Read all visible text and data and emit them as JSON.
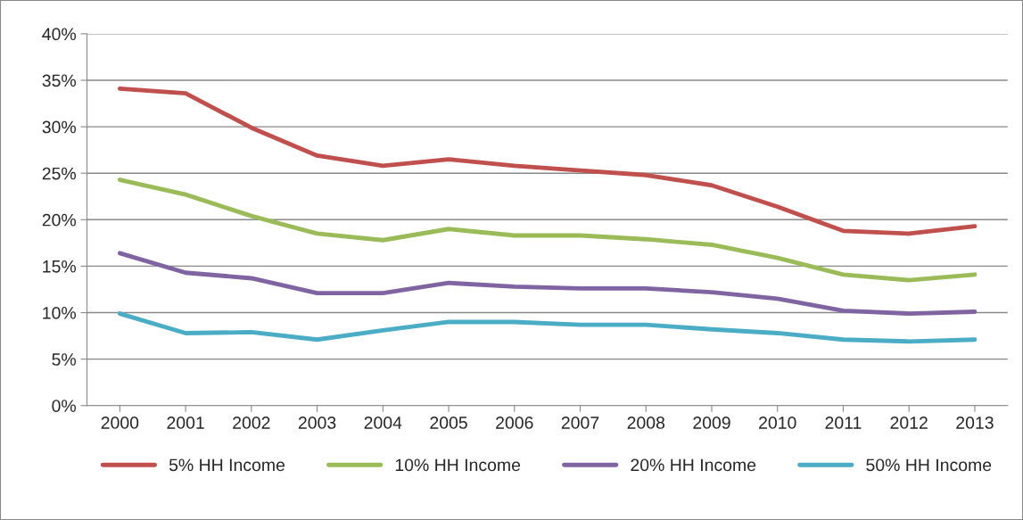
{
  "chart_data": {
    "type": "line",
    "categories": [
      "2000",
      "2001",
      "2002",
      "2003",
      "2004",
      "2005",
      "2006",
      "2007",
      "2008",
      "2009",
      "2010",
      "2011",
      "2012",
      "2013"
    ],
    "series": [
      {
        "name": "5% HH Income",
        "color": "#c0504d",
        "values": [
          34.1,
          33.6,
          29.9,
          26.9,
          25.8,
          26.5,
          25.8,
          25.3,
          24.8,
          23.7,
          21.4,
          18.8,
          18.5,
          19.3
        ]
      },
      {
        "name": "10% HH Income",
        "color": "#9bbb59",
        "values": [
          24.3,
          22.7,
          20.4,
          18.5,
          17.8,
          19.0,
          18.3,
          18.3,
          17.9,
          17.3,
          15.9,
          14.1,
          13.5,
          14.1
        ]
      },
      {
        "name": "20% HH Income",
        "color": "#8064a2",
        "values": [
          16.4,
          14.3,
          13.7,
          12.1,
          12.1,
          13.2,
          12.8,
          12.6,
          12.6,
          12.2,
          11.5,
          10.2,
          9.9,
          10.1
        ]
      },
      {
        "name": "50% HH Income",
        "color": "#4bacc6",
        "values": [
          9.9,
          7.8,
          7.9,
          7.1,
          8.1,
          9.0,
          9.0,
          8.7,
          8.7,
          8.2,
          7.8,
          7.1,
          6.9,
          7.1
        ]
      }
    ],
    "ylim": [
      0,
      40
    ],
    "yticks": [
      {
        "value": 0,
        "label": "0%"
      },
      {
        "value": 5,
        "label": "5%"
      },
      {
        "value": 10,
        "label": "10%"
      },
      {
        "value": 15,
        "label": "15%"
      },
      {
        "value": 20,
        "label": "20%"
      },
      {
        "value": 25,
        "label": "25%"
      },
      {
        "value": 30,
        "label": "30%"
      },
      {
        "value": 35,
        "label": "35%"
      },
      {
        "value": 40,
        "label": "40%"
      }
    ],
    "grid": "y",
    "legend": "bottom",
    "marker": "none",
    "line_style": "solid"
  }
}
